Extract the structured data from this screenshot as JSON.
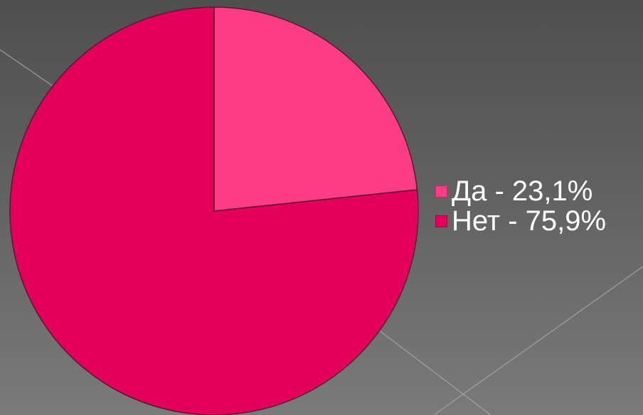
{
  "chart_data": {
    "type": "pie",
    "categories": [
      "Да",
      "Нет"
    ],
    "values": [
      23.1,
      75.9
    ],
    "legend_labels": [
      "Да - 23,1%",
      "Нет - 75,9%"
    ],
    "colors": [
      "#ff3d87",
      "#e2005a"
    ],
    "title": "",
    "legend_position": "right",
    "start_angle": "top",
    "direction": "clockwise"
  },
  "theme": {
    "slice_stroke": "#5a1830",
    "line_color": "#a8a8a8"
  }
}
